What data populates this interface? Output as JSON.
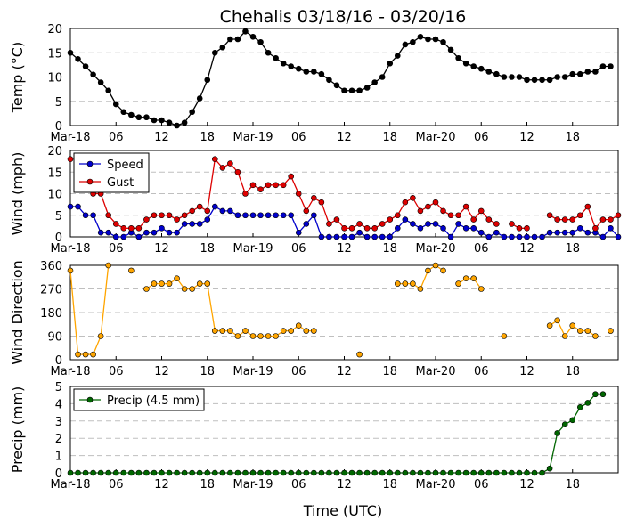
{
  "title": "Chehalis 03/18/16 - 03/20/16",
  "xlabel": "Time (UTC)",
  "x_ticks": [
    "Mar-18",
    "06",
    "12",
    "18",
    "Mar-19",
    "06",
    "12",
    "18",
    "Mar-20",
    "06",
    "12",
    "18"
  ],
  "chart_data": [
    {
      "type": "line",
      "ylabel": "Temp (°C)",
      "ylim": [
        0,
        20
      ],
      "yticks": [
        0,
        5,
        10,
        15,
        20
      ],
      "grid": true,
      "series": [
        {
          "color": "#000000",
          "values": [
            15,
            13.7,
            12.2,
            10.5,
            8.9,
            7.2,
            4.4,
            2.8,
            2.2,
            1.7,
            1.7,
            1.1,
            1.1,
            0.6,
            0,
            0.6,
            2.8,
            5.6,
            9.4,
            15,
            16.1,
            17.8,
            17.8,
            19.4,
            18.3,
            17.2,
            15,
            13.9,
            12.8,
            12.2,
            11.7,
            11.1,
            11.1,
            10.6,
            9.4,
            8.3,
            7.2,
            7.2,
            7.2,
            7.8,
            8.9,
            10,
            12.8,
            14.4,
            16.7,
            17.2,
            18.3,
            17.8,
            17.8,
            17.2,
            15.6,
            13.9,
            12.8,
            12.2,
            11.7,
            11.1,
            10.6,
            10,
            10,
            10,
            9.4,
            9.4,
            9.4,
            9.4,
            10,
            10,
            10.6,
            10.6,
            11.1,
            11.1,
            12.2,
            12.2
          ]
        }
      ]
    },
    {
      "type": "line",
      "ylabel": "Wind (mph)",
      "ylim": [
        0,
        20
      ],
      "yticks": [
        0,
        5,
        10,
        15,
        20
      ],
      "grid": true,
      "legend": "top-left",
      "series": [
        {
          "name": "Speed",
          "color": "#0000cc",
          "values": [
            7,
            7,
            5,
            5,
            1,
            1,
            0,
            0,
            1,
            0,
            1,
            1,
            2,
            1,
            1,
            3,
            3,
            3,
            4,
            7,
            6,
            6,
            5,
            5,
            5,
            5,
            5,
            5,
            5,
            5,
            1,
            3,
            5,
            0,
            0,
            0,
            0,
            0,
            1,
            0,
            0,
            0,
            0,
            2,
            4,
            3,
            2,
            3,
            3,
            2,
            0,
            3,
            2,
            2,
            1,
            0,
            1,
            0,
            0,
            0,
            0,
            0,
            0,
            1,
            1,
            1,
            1,
            2,
            1,
            1,
            0,
            2,
            0
          ]
        },
        {
          "name": "Gust",
          "color": "#dd0000",
          "values": [
            18,
            null,
            null,
            10,
            10,
            5,
            3,
            2,
            2,
            2,
            4,
            5,
            5,
            5,
            4,
            5,
            6,
            7,
            6,
            18,
            16,
            17,
            15,
            10,
            12,
            11,
            12,
            12,
            12,
            14,
            10,
            6,
            9,
            8,
            3,
            4,
            2,
            2,
            3,
            2,
            2,
            3,
            4,
            5,
            8,
            9,
            6,
            7,
            8,
            6,
            5,
            5,
            7,
            4,
            6,
            4,
            3,
            null,
            3,
            2,
            2,
            null,
            null,
            5,
            4,
            4,
            4,
            5,
            7,
            2,
            4,
            4,
            5
          ]
        }
      ]
    },
    {
      "type": "line",
      "ylabel": "Wind Direction",
      "ylim": [
        0,
        360
      ],
      "yticks": [
        0,
        90,
        180,
        270,
        360
      ],
      "grid": true,
      "series": [
        {
          "color": "#ffa500",
          "values": [
            340,
            20,
            20,
            20,
            90,
            360,
            null,
            null,
            340,
            null,
            270,
            290,
            290,
            290,
            310,
            270,
            270,
            290,
            290,
            110,
            110,
            110,
            90,
            110,
            90,
            90,
            90,
            90,
            110,
            110,
            130,
            110,
            110,
            null,
            null,
            null,
            null,
            null,
            20,
            null,
            null,
            null,
            null,
            290,
            290,
            290,
            270,
            340,
            360,
            340,
            null,
            290,
            310,
            310,
            270,
            null,
            null,
            90,
            null,
            null,
            null,
            null,
            null,
            130,
            150,
            90,
            130,
            110,
            110,
            90,
            null,
            110,
            null
          ]
        }
      ]
    },
    {
      "type": "line",
      "ylabel": "Precip (mm)",
      "ylim": [
        0,
        5
      ],
      "yticks": [
        0,
        1,
        2,
        3,
        4,
        5
      ],
      "grid": true,
      "legend": "top-left",
      "series": [
        {
          "name": "Precip (4.5 mm)",
          "color": "#006600",
          "values": [
            0,
            0,
            0,
            0,
            0,
            0,
            0,
            0,
            0,
            0,
            0,
            0,
            0,
            0,
            0,
            0,
            0,
            0,
            0,
            0,
            0,
            0,
            0,
            0,
            0,
            0,
            0,
            0,
            0,
            0,
            0,
            0,
            0,
            0,
            0,
            0,
            0,
            0,
            0,
            0,
            0,
            0,
            0,
            0,
            0,
            0,
            0,
            0,
            0,
            0,
            0,
            0,
            0,
            0,
            0,
            0,
            0,
            0,
            0,
            0,
            0,
            0,
            0,
            0.25,
            2.3,
            2.8,
            3.05,
            3.8,
            4.05,
            4.55,
            4.55
          ]
        }
      ]
    }
  ]
}
